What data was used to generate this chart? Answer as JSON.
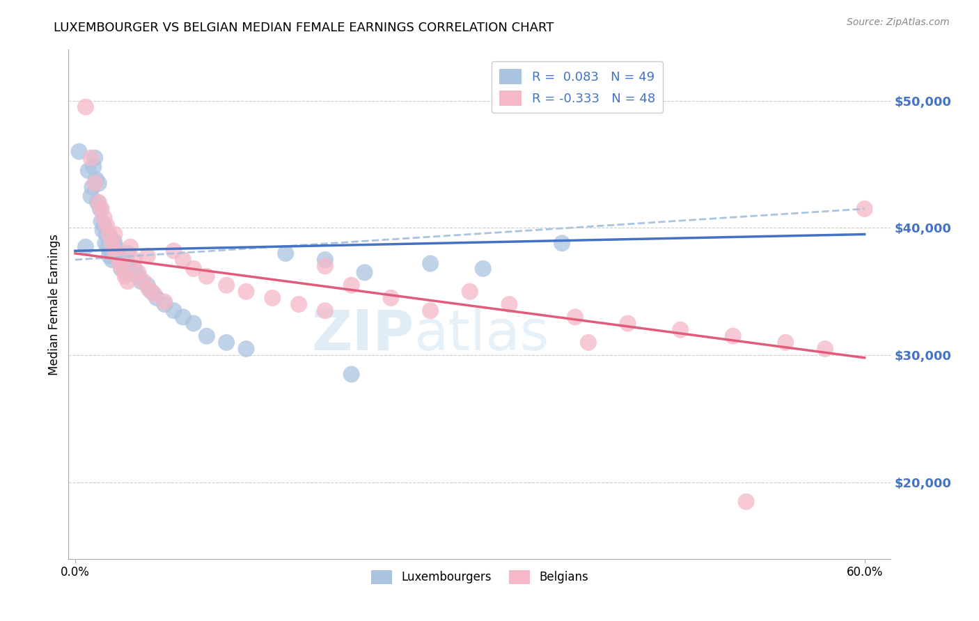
{
  "title": "LUXEMBOURGER VS BELGIAN MEDIAN FEMALE EARNINGS CORRELATION CHART",
  "source_text": "Source: ZipAtlas.com",
  "ylabel": "Median Female Earnings",
  "xlim": [
    -0.005,
    0.62
  ],
  "ylim": [
    14000,
    54000
  ],
  "yticks": [
    20000,
    30000,
    40000,
    50000
  ],
  "ytick_labels": [
    "$20,000",
    "$30,000",
    "$40,000",
    "$50,000"
  ],
  "xtick_positions": [
    0.0,
    0.6
  ],
  "xtick_labels": [
    "0.0%",
    "60.0%"
  ],
  "blue_color": "#4472c4",
  "pink_color": "#e05c7a",
  "blue_scatter_color": "#aac4e0",
  "pink_scatter_color": "#f4b8c8",
  "watermark_zip": "ZIP",
  "watermark_atlas": "atlas",
  "legend_label_blue": "R =  0.083   N = 49",
  "legend_label_pink": "R = -0.333   N = 48",
  "legend_bottom_blue": "Luxembourgers",
  "legend_bottom_pink": "Belgians",
  "blue_line_x0": 0.0,
  "blue_line_x1": 0.6,
  "blue_line_y0": 38200,
  "blue_line_y1": 39500,
  "pink_line_x0": 0.0,
  "pink_line_x1": 0.6,
  "pink_line_y0": 38000,
  "pink_line_y1": 29800,
  "dash_line_x0": 0.0,
  "dash_line_x1": 0.6,
  "dash_line_y0": 37500,
  "dash_line_y1": 41500,
  "blue_points_x": [
    0.003,
    0.008,
    0.01,
    0.012,
    0.013,
    0.014,
    0.015,
    0.016,
    0.017,
    0.018,
    0.019,
    0.02,
    0.021,
    0.022,
    0.023,
    0.024,
    0.025,
    0.026,
    0.027,
    0.028,
    0.029,
    0.03,
    0.032,
    0.034,
    0.035,
    0.037,
    0.038,
    0.04,
    0.042,
    0.045,
    0.048,
    0.05,
    0.055,
    0.058,
    0.062,
    0.068,
    0.075,
    0.082,
    0.09,
    0.1,
    0.115,
    0.13,
    0.16,
    0.19,
    0.22,
    0.27,
    0.31,
    0.37,
    0.21
  ],
  "blue_points_y": [
    46000,
    38500,
    44500,
    42500,
    43200,
    44800,
    45500,
    43800,
    42000,
    43500,
    41500,
    40500,
    39800,
    40200,
    38800,
    39500,
    38500,
    37800,
    38200,
    37500,
    39000,
    38800,
    38200,
    37500,
    36800,
    37200,
    36500,
    38000,
    37000,
    36800,
    36200,
    35800,
    35500,
    35000,
    34500,
    34000,
    33500,
    33000,
    32500,
    31500,
    31000,
    30500,
    38000,
    37500,
    36500,
    37200,
    36800,
    38800,
    28500
  ],
  "pink_points_x": [
    0.008,
    0.012,
    0.015,
    0.018,
    0.02,
    0.022,
    0.024,
    0.026,
    0.028,
    0.03,
    0.032,
    0.034,
    0.036,
    0.038,
    0.04,
    0.042,
    0.045,
    0.048,
    0.052,
    0.056,
    0.06,
    0.068,
    0.075,
    0.082,
    0.09,
    0.1,
    0.115,
    0.13,
    0.15,
    0.17,
    0.19,
    0.21,
    0.24,
    0.27,
    0.3,
    0.33,
    0.38,
    0.42,
    0.46,
    0.5,
    0.54,
    0.57,
    0.6,
    0.03,
    0.055,
    0.19,
    0.39,
    0.51
  ],
  "pink_points_y": [
    49500,
    45500,
    43500,
    42000,
    41500,
    40800,
    40200,
    39500,
    38800,
    38200,
    37800,
    37200,
    36800,
    36200,
    35800,
    38500,
    37500,
    36500,
    35800,
    35200,
    34800,
    34200,
    38200,
    37500,
    36800,
    36200,
    35500,
    35000,
    34500,
    34000,
    33500,
    35500,
    34500,
    33500,
    35000,
    34000,
    33000,
    32500,
    32000,
    31500,
    31000,
    30500,
    41500,
    39500,
    37800,
    37000,
    31000,
    18500
  ]
}
